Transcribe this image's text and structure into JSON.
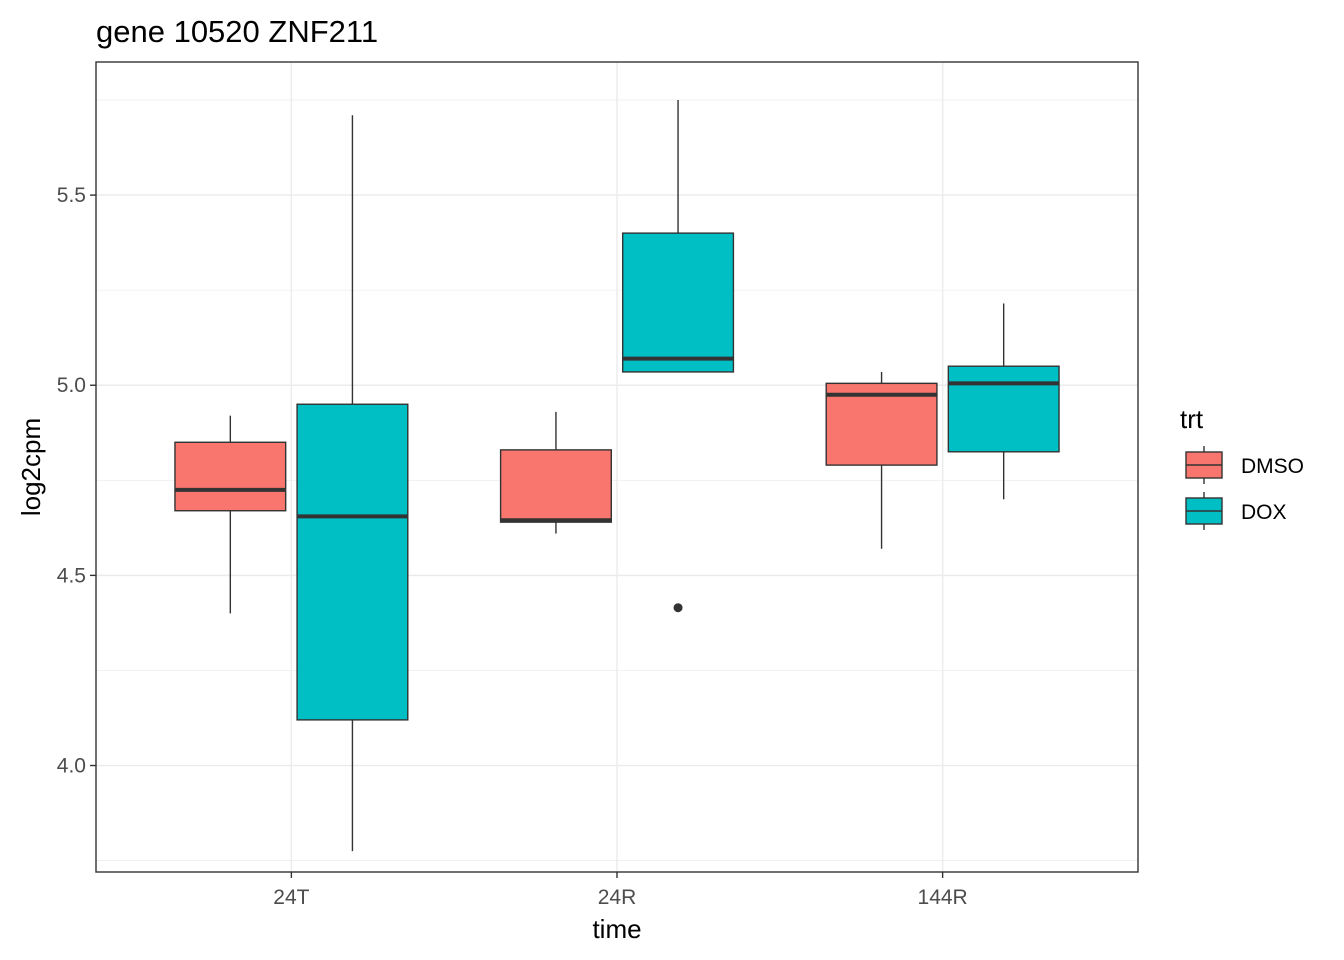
{
  "chart_data": {
    "type": "boxplot",
    "title": "gene 10520 ZNF211",
    "xlabel": "time",
    "ylabel": "log2cpm",
    "categories": [
      "24T",
      "24R",
      "144R"
    ],
    "y_ticks": [
      4.0,
      4.5,
      5.0,
      5.5
    ],
    "y_tick_labels": [
      "4.0",
      "4.5",
      "5.0",
      "5.5"
    ],
    "ylim": [
      3.72,
      5.85
    ],
    "grid": true,
    "legend": {
      "title": "trt",
      "position": "right"
    },
    "series": [
      {
        "name": "DMSO",
        "color": "#F8766D",
        "boxes": [
          {
            "category": "24T",
            "whisker_low": 4.4,
            "q1": 4.67,
            "median": 4.725,
            "q3": 4.85,
            "whisker_high": 4.92,
            "outliers": []
          },
          {
            "category": "24R",
            "whisker_low": 4.61,
            "q1": 4.64,
            "median": 4.645,
            "q3": 4.83,
            "whisker_high": 4.93,
            "outliers": []
          },
          {
            "category": "144R",
            "whisker_low": 4.57,
            "q1": 4.79,
            "median": 4.975,
            "q3": 5.005,
            "whisker_high": 5.035,
            "outliers": []
          }
        ]
      },
      {
        "name": "DOX",
        "color": "#00BFC4",
        "boxes": [
          {
            "category": "24T",
            "whisker_low": 3.775,
            "q1": 4.12,
            "median": 4.655,
            "q3": 4.95,
            "whisker_high": 5.71,
            "outliers": []
          },
          {
            "category": "24R",
            "whisker_low": 5.035,
            "q1": 5.035,
            "median": 5.07,
            "q3": 5.4,
            "whisker_high": 5.75,
            "outliers": [
              4.415
            ]
          },
          {
            "category": "144R",
            "whisker_low": 4.7,
            "q1": 4.825,
            "median": 5.005,
            "q3": 5.05,
            "whisker_high": 5.215,
            "outliers": []
          }
        ]
      }
    ]
  }
}
